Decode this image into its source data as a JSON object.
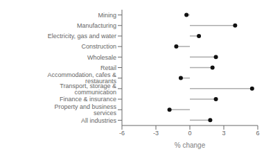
{
  "chart_data": {
    "type": "lollipop",
    "orientation": "horizontal",
    "categories": [
      "Mining",
      "Manufacturing",
      "Electricity, gas and water",
      "Construction",
      "Wholesale",
      "Retail",
      "Accommodation, cafes & restaurants",
      "Transport, storage & communication",
      "Finance & insurance",
      "Property and business services",
      "All industries"
    ],
    "values": [
      -0.3,
      4.0,
      0.8,
      -1.2,
      2.3,
      2.0,
      -0.8,
      5.5,
      2.3,
      -1.8,
      1.8
    ],
    "xlabel": "% change",
    "xlim": [
      -6,
      6
    ],
    "xticks": [
      -6,
      -3,
      0,
      3,
      6
    ],
    "color": "#111111",
    "grid": false
  }
}
